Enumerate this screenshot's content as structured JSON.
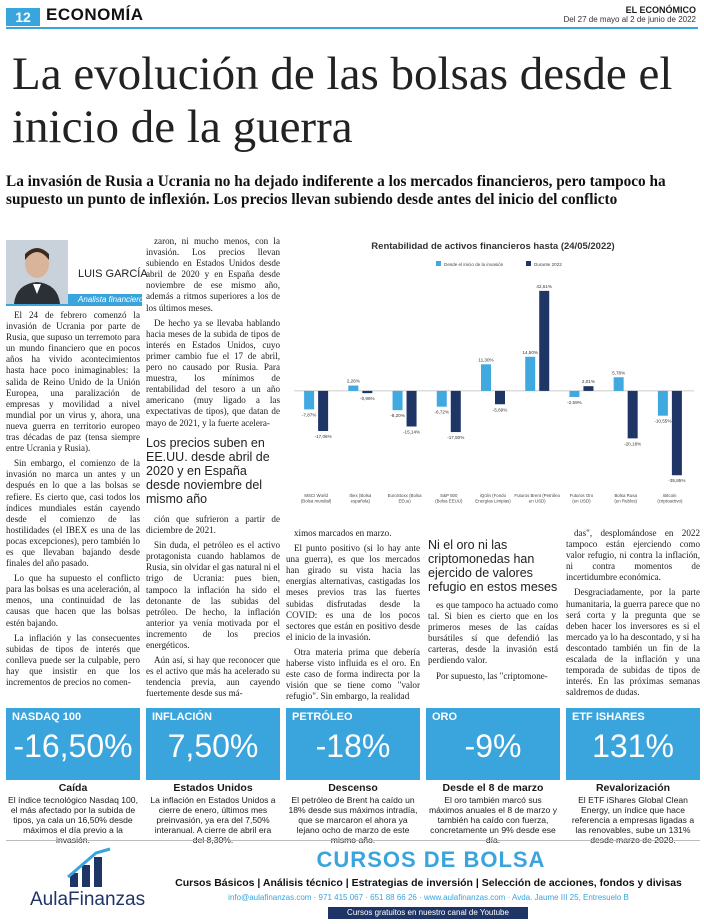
{
  "page": {
    "number": "12",
    "section": "ECONOMÍA",
    "brand": "EL ECONÓMICO",
    "date": "Del 27 de mayo al 2 de junio de 2022"
  },
  "headline": "La evolución de las bolsas desde el inicio de la guerra",
  "standfirst": "La invasión de Rusia a Ucrania no ha dejado indiferente a los mercados financieros, pero tampoco ha supuesto un punto de inflexión. Los precios llevan subiendo desde antes del inicio del conflicto",
  "author": {
    "name": "LUIS GARCÍA",
    "role": "Analista financiero"
  },
  "col1": [
    "El 24 de febrero comenzó la invasión de Ucrania por parte de Rusia, que supuso un terremoto para un mundo financiero que en pocos años ha vivido acontecimientos hasta hace poco inimaginables: la salida de Reino Unido de la Unión Europea, una paralización de empresas y movilidad a nivel mundial por un virus y, ahora, una nueva guerra en territorio europeo tras décadas de paz (tensa siempre entre Ucrania y Rusia).",
    "Sin embargo, el comienzo de la invasión no marca un antes y un después en lo que a las bolsas se refiere. Es cierto que, casi todos los índices mundiales están cayendo desde el comienzo de las hostilidades (el IBEX es una de las pocas excepciones), pero también lo es que llevaban bajando desde finales del año pasado.",
    "Lo que ha supuesto el conflicto para las bolsas es una aceleración, al menos, una continuidad de las causas que hacen que las bolsas estén bajando.",
    "La inflación y las consecuentes subidas de tipos de interés que conlleva puede ser la culpable, pero hay que insistir en que los incrementos de precios no comen-"
  ],
  "col2a": [
    "zaron, ni mucho menos, con la invasión. Los precios llevan subiendo en Estados Unidos desde abril de 2020 y en España desde noviembre de ese mismo año, además a ritmos superiores a los de los últimos meses.",
    "De hecho ya se llevaba hablando hacia meses de la subida de tipos de interés en Estados Unidos, cuyo primer cambio fue el 17 de abril, pero no causado por Rusia. Para muestra, los mínimos de rentabilidad del tesoro a un año americano (muy ligado a las expectativas de tipos), que datan de mayo de 2021, y la fuerte acelera-"
  ],
  "subhead1": "Los precios suben en EE.UU. desde abril de 2020 y en España desde noviembre del mismo año",
  "col2b": [
    "ción que sufrieron a partir de diciembre de 2021.",
    "Sin duda, el petróleo es el activo protagonista cuando hablamos de Rusia, sin olvidar el gas natural ni el trigo de Ucrania: pues bien, tampoco la inflación ha sido el detonante de las subidas del petróleo. De hecho, la inflación anterior ya venía motivada por el incremento de los precios energéticos.",
    "Aún así, si hay que reconocer que es el activo que más ha acelerado su tendencia previa, aun cayendo fuertemente desde sus má-"
  ],
  "col3": [
    "ximos marcados en marzo.",
    "El punto positivo (si lo hay ante una guerra), es que los mercados han girado su vista hacia las energías alternativas, castigadas los meses previos tras las fuertes subidas disfrutadas desde la COVID: es una de los pocos sectores que están en positivo desde el inicio de la invasión.",
    "Otra materia prima que debería haberse visto influida es el oro. En este caso de forma indirecta por la visión que se tiene como \"valor refugio\". Sin embargo, la realidad"
  ],
  "subhead2": "Ni el oro ni las criptomonedas han ejercido de valores refugio en estos meses",
  "col4": [
    "es que tampoco ha actuado como tal. Si bien es cierto que en los primeros meses de las caídas bursátiles sí que defendió las carteras, desde la invasión está perdiendo valor.",
    "Por supuesto, las \"criptomone-"
  ],
  "col5": [
    "das\", desplomándose en 2022 tampoco están ejerciendo como valor refugio, ni contra la inflación, ni contra momentos de incertidumbre económica.",
    "Desgraciadamente, por la parte humanitaria, la guerra parece que no será corta y la pregunta que se deben hacer los inversores es si el mercado ya lo ha descontado, y si ha descontado también un fin de la escalada de la inflación y una temporada de subidas de tipos de interés. En las próximas semanas saldremos de dudas."
  ],
  "chart_data": {
    "type": "bar",
    "title": "Rentabilidad de activos financieros hasta (24/05/2022)",
    "categories": [
      "MSCI World (Bolsa mundial)",
      "Ibex (Bolsa española)",
      "EuroStoxx (Bolsa EEuu)",
      "S&P 500 (Bolsa EEUU)",
      "iQclin (Fondo Energías Limpias)",
      "Futuros Brent (Petróleo en USD)",
      "Futuros Oro (en USD)",
      "Bolsa Rusa (en Rublos)",
      "Bitcoin (criptoactivo)"
    ],
    "series": [
      {
        "name": "Desde el inicio de la invasión",
        "values": [
          -7.87,
          2.26,
          -8.2,
          -6.72,
          11.3,
          14.5,
          -2.59,
          5.78,
          -10.55
        ]
      },
      {
        "name": "Durante 2022",
        "values": [
          -17.06,
          -0.96,
          -15.14,
          -17.5,
          -5.69,
          42.51,
          2.01,
          -20.18,
          -35.85
        ]
      }
    ],
    "value_labels": [
      [
        "-7,87%",
        "2,26%",
        "-8,20%",
        "-6,72%",
        "11,30%",
        "14,50%",
        "-2,59%",
        "5,78%",
        "-10,55%"
      ],
      [
        "-17,06%",
        "-0,96%",
        "-15,14%",
        "-17,50%",
        "-5,69%",
        "42,51%",
        "2,01%",
        "-20,18%",
        "-35,85%"
      ]
    ],
    "ylim": [
      -40,
      45
    ],
    "colors": [
      "#3fa9e0",
      "#1f3566"
    ],
    "legend": "top"
  },
  "stats": [
    {
      "label": "NASDAQ 100",
      "value": "-16,50%",
      "title": "Caída",
      "text": "El índice tecnológico Nasdaq 100, el más afectado por la subida de tipos, ya cala un 16,50% desde máximos el día previo a la invasión."
    },
    {
      "label": "INFLACIÓN",
      "value": "7,50%",
      "title": "Estados Unidos",
      "text": "La inflación en Estados Unidos a cierre de enero, últimos mes preinvasión, ya era del 7,50% interanual. A cierre de abril era del 8,30%."
    },
    {
      "label": "PETRÓLEO",
      "value": "-18%",
      "title": "Descenso",
      "text": "El petróleo de Brent ha caído un 18% desde sus máximos intradía, que se marcaron el ahora ya lejano ocho de marzo de este mismo año."
    },
    {
      "label": "ORO",
      "value": "-9%",
      "title": "Desde el 8 de marzo",
      "text": "El oro también marcó sus máximos anuales el 8 de marzo y también ha caído con fuerza, concretamente un 9% desde ese día."
    },
    {
      "label": "ETF ISHARES",
      "value": "131%",
      "title": "Revalorización",
      "text": "El ETF iShares Global Clean Energy, un índice que hace referencia a empresas ligadas a las renovables, sube un 131% desde marzo de 2020."
    }
  ],
  "ad": {
    "brand": "AulaFinanzas",
    "title": "CURSOS DE BOLSA",
    "line1": "Cursos Básicos | Análisis técnico | Estrategias de inversión | Selección de acciones, fondos y divisas",
    "line2": "info@aulafinanzas.com · 971 415 067 · 651 88 66 26 · www.aulafinanzas.com · Avda. Jaume III 25, Entresuelo B",
    "line3": "Cursos gratuitos en nuestro canal de Youtube"
  }
}
